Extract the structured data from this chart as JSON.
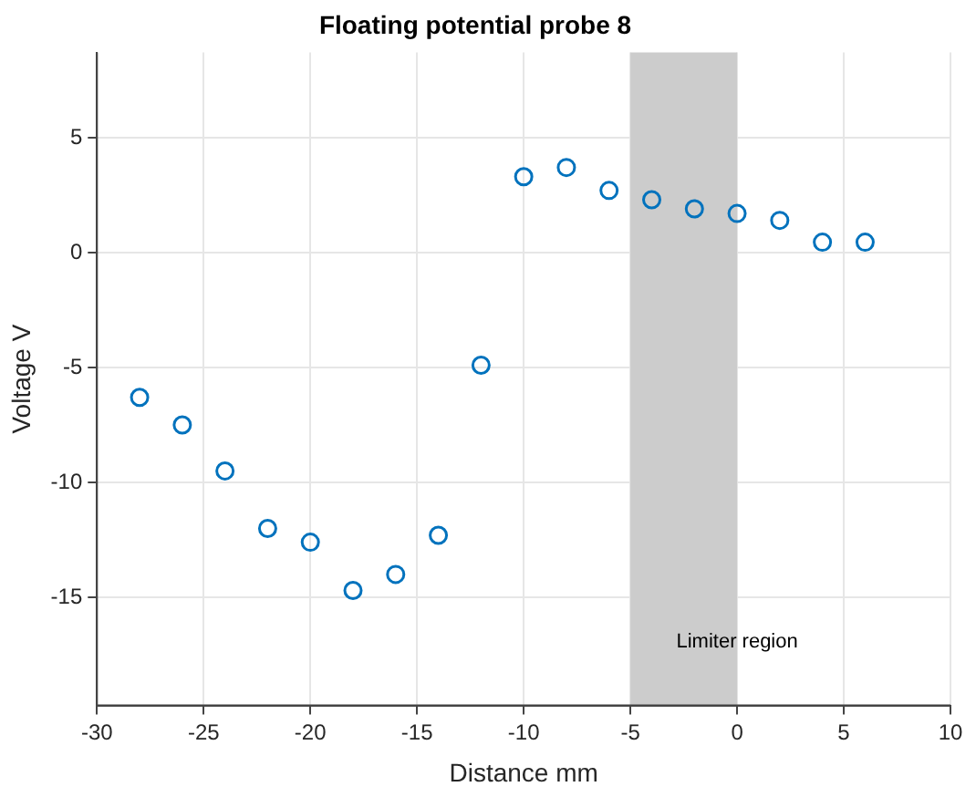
{
  "chart_data": {
    "type": "scatter",
    "title": "Floating potential probe 8",
    "xlabel": "Distance mm",
    "ylabel": "Voltage V",
    "x": [
      -28,
      -26,
      -24,
      -22,
      -20,
      -18,
      -16,
      -14,
      -12,
      -10,
      -8,
      -6,
      -4,
      -2,
      0,
      2,
      4,
      6
    ],
    "series": [
      {
        "color": "#0072bd",
        "values": [
          -6.3,
          -7.5,
          -9.5,
          -12.0,
          -12.6,
          -14.7,
          -14.0,
          -12.3,
          -4.9,
          3.3,
          3.7,
          2.7,
          2.3,
          1.9,
          1.7,
          1.4,
          0.45,
          0.45
        ]
      }
    ],
    "xlim": [
      -30,
      10
    ],
    "xticks": [
      -30,
      -25,
      -20,
      -15,
      -10,
      -5,
      0,
      5,
      10
    ],
    "ylim": [
      -19.7,
      8.7
    ],
    "yticks": [
      -15,
      -10,
      -5,
      0,
      5
    ],
    "bands": [
      {
        "axis": "x",
        "from": -5,
        "to": 0,
        "label": "Limiter region",
        "color": "#cccccc"
      }
    ],
    "grid": true,
    "marker": "circle",
    "legend": false
  }
}
